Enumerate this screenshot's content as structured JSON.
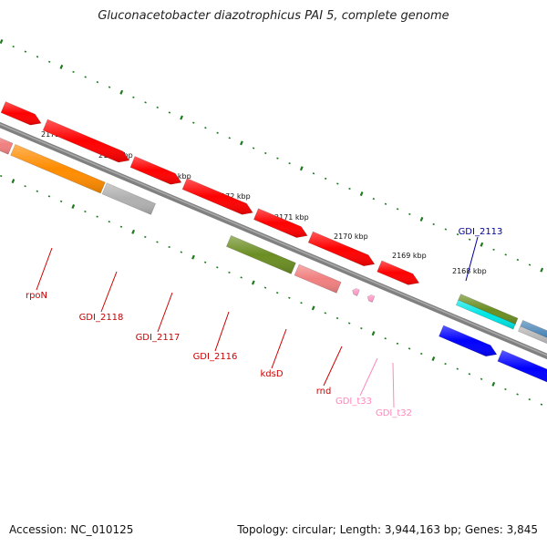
{
  "title": "Gluconacetobacter diazotrophicus PAI 5, complete genome",
  "footer": {
    "accession": "Accession: NC_010125",
    "summary": "Topology: circular; Length: 3,944,163 bp; Genes: 3,845"
  },
  "colors": {
    "backbone": "#808080",
    "ticks": "#1f7a1f",
    "red": "#ff0000",
    "orange": "#ff8c00",
    "grey": "#b0b0b0",
    "olive": "#6b8e23",
    "salmon": "#f08080",
    "pink": "#ff9fc6",
    "cyan": "#00e5e5",
    "blue": "#0000ff",
    "steel": "#4682b4",
    "label_red": "#cc0000",
    "label_pink": "#ff88bb",
    "label_blue": "#000099"
  },
  "ticks": [
    {
      "label": "2175 kbp"
    },
    {
      "label": "2174 kbp"
    },
    {
      "label": "2173 kbp"
    },
    {
      "label": "2172 kbp"
    },
    {
      "label": "2171 kbp"
    },
    {
      "label": "2170 kbp"
    },
    {
      "label": "2169 kbp"
    },
    {
      "label": "2168 kbp"
    }
  ],
  "gene_labels": [
    {
      "name": "rpoN",
      "color": "red"
    },
    {
      "name": "GDI_2118",
      "color": "red"
    },
    {
      "name": "GDI_2117",
      "color": "red"
    },
    {
      "name": "GDI_2116",
      "color": "red"
    },
    {
      "name": "kdsD",
      "color": "red"
    },
    {
      "name": "rnd",
      "color": "red"
    },
    {
      "name": "GDI_t33",
      "color": "pink"
    },
    {
      "name": "GDI_t32",
      "color": "pink"
    },
    {
      "name": "GDI_2113",
      "color": "blue"
    }
  ]
}
